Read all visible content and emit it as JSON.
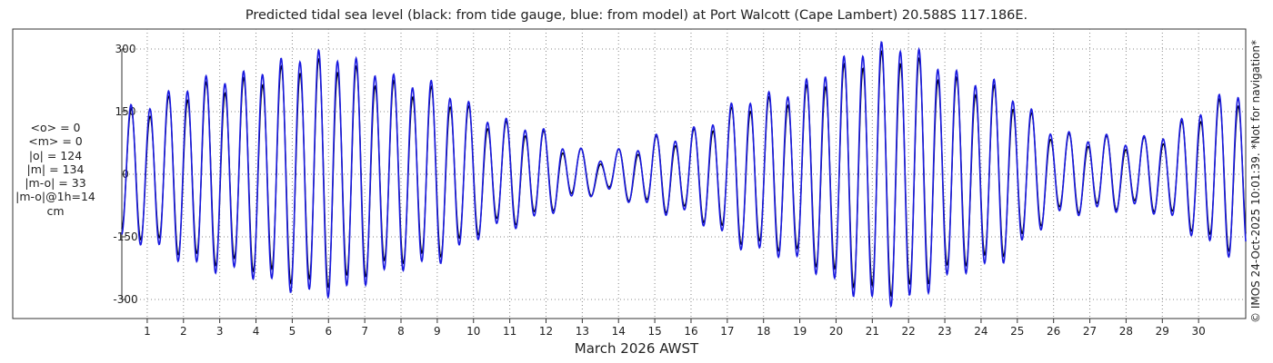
{
  "title": "Predicted tidal sea level (black: from tide gauge, blue: from model) at Port Walcott (Cape Lambert) 20.588S 117.186E.",
  "xlabel": "March 2026 AWST",
  "stats": [
    "<o> = 0",
    "<m> = 0",
    "|o| = 124",
    "|m| = 134",
    "|m-o| = 33",
    "|m-o|@1h=14",
    "cm"
  ],
  "copyright": "© IMOS 24-Oct-2025 10:01:39. *Not for navigation*",
  "colors": {
    "observed": "#000000",
    "model": "#1a1adf",
    "grid": "#888888",
    "axis": "#333333"
  },
  "chart_data": {
    "type": "line",
    "xlabel": "March 2026 AWST",
    "ylabel": "",
    "x_unit": "day of March 2026",
    "xlim": [
      0.3,
      31.3
    ],
    "ylim": [
      -320,
      320
    ],
    "xticks": [
      1,
      2,
      3,
      4,
      5,
      6,
      7,
      8,
      9,
      10,
      11,
      12,
      13,
      14,
      15,
      16,
      17,
      18,
      19,
      20,
      21,
      22,
      23,
      24,
      25,
      26,
      27,
      28,
      29,
      30
    ],
    "yticks": [
      -300,
      -150,
      0,
      150,
      300
    ],
    "grid": true,
    "tide": {
      "semidiurnal_amplitude_envelope": [
        {
          "day": 0.3,
          "amp": 145
        },
        {
          "day": 3,
          "amp": 215
        },
        {
          "day": 5.8,
          "amp": 270
        },
        {
          "day": 8.5,
          "amp": 205
        },
        {
          "day": 11,
          "amp": 115
        },
        {
          "day": 13.5,
          "amp": 40
        },
        {
          "day": 15.5,
          "amp": 85
        },
        {
          "day": 18,
          "amp": 175
        },
        {
          "day": 21.5,
          "amp": 290
        },
        {
          "day": 24,
          "amp": 210
        },
        {
          "day": 26.5,
          "amp": 85
        },
        {
          "day": 28.3,
          "amp": 75
        },
        {
          "day": 31.3,
          "amp": 185
        }
      ],
      "semidiurnal_period_days": 0.5175,
      "diurnal_amplitude": 18,
      "model_to_gauge_ratio": 1.06
    },
    "series": [
      {
        "name": "black: from tide gauge",
        "color": "#000000"
      },
      {
        "name": "blue: from model",
        "color": "#1a1adf"
      }
    ]
  }
}
